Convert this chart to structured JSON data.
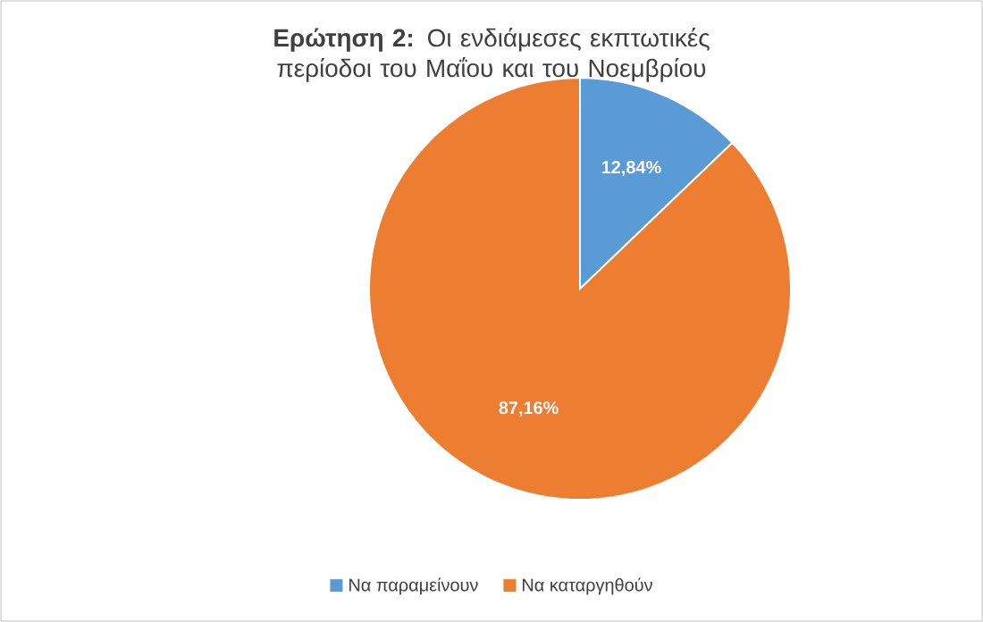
{
  "chart_data": {
    "type": "pie",
    "title": "**Ερώτηση 2:** Οι ενδιάμεσες εκπτωτικές περίοδοι του Μαΐου και του Νοεμβρίου",
    "categories": [
      "Να παραμείνουν",
      "Να καταργηθούν"
    ],
    "values": [
      12.84,
      87.16
    ],
    "colors": [
      "#5b9bd5",
      "#ed7d31"
    ],
    "value_labels": [
      "12,84%",
      "87,16%"
    ],
    "legend": "bottom"
  }
}
